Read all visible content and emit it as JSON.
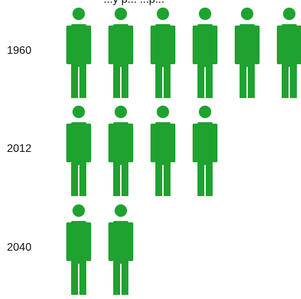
{
  "chart_data": {
    "type": "pictograph",
    "title_partial": "...y p... ...p...",
    "icon": "person-icon",
    "icon_color": "#1fa22f",
    "categories": [
      "1960",
      "2012",
      "2040"
    ],
    "values": [
      6,
      4,
      2
    ]
  }
}
